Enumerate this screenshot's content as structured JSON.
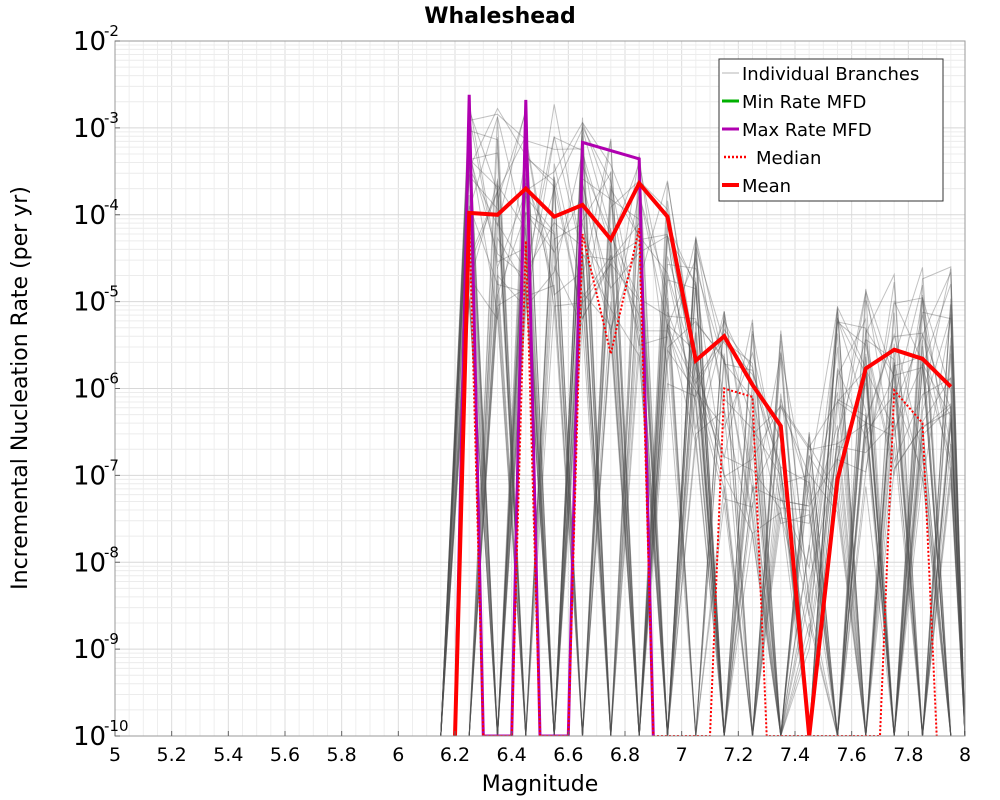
{
  "chart_data": {
    "type": "line",
    "title": "Whaleshead",
    "xlabel": "Magnitude",
    "ylabel": "Incremental Nucleation Rate (per yr)",
    "xlim": [
      5,
      8
    ],
    "ylim": [
      1e-10,
      0.01
    ],
    "yscale": "log",
    "grid": true,
    "legend_position": "top-right",
    "x_ticks": [
      {
        "value": 5,
        "label": "5"
      },
      {
        "value": 5.2,
        "label": "5.2"
      },
      {
        "value": 5.4,
        "label": "5.4"
      },
      {
        "value": 5.6,
        "label": "5.6"
      },
      {
        "value": 5.8,
        "label": "5.8"
      },
      {
        "value": 6,
        "label": "6"
      },
      {
        "value": 6.2,
        "label": "6.2"
      },
      {
        "value": 6.4,
        "label": "6.4"
      },
      {
        "value": 6.6,
        "label": "6.6"
      },
      {
        "value": 6.8,
        "label": "6.8"
      },
      {
        "value": 7,
        "label": "7"
      },
      {
        "value": 7.2,
        "label": "7.2"
      },
      {
        "value": 7.4,
        "label": "7.4"
      },
      {
        "value": 7.6,
        "label": "7.6"
      },
      {
        "value": 7.8,
        "label": "7.8"
      },
      {
        "value": 8,
        "label": "8"
      }
    ],
    "y_ticks": [
      {
        "exponent": -10,
        "base": "10",
        "exp": "-10"
      },
      {
        "exponent": -9,
        "base": "10",
        "exp": "-9"
      },
      {
        "exponent": -8,
        "base": "10",
        "exp": "-8"
      },
      {
        "exponent": -7,
        "base": "10",
        "exp": "-7"
      },
      {
        "exponent": -6,
        "base": "10",
        "exp": "-6"
      },
      {
        "exponent": -5,
        "base": "10",
        "exp": "-5"
      },
      {
        "exponent": -4,
        "base": "10",
        "exp": "-4"
      },
      {
        "exponent": -3,
        "base": "10",
        "exp": "-3"
      },
      {
        "exponent": -2,
        "base": "10",
        "exp": "-2"
      }
    ],
    "legend": [
      {
        "label": "Individual Branches",
        "color": "#b4b4b4",
        "style": "thin"
      },
      {
        "label": "Min Rate MFD",
        "color": "#00b000",
        "style": "solid"
      },
      {
        "label": "Max Rate MFD",
        "color": "#b000b0",
        "style": "solid"
      },
      {
        "label": "Median",
        "color": "#ff0000",
        "style": "dotted"
      },
      {
        "label": "Mean",
        "color": "#ff0000",
        "style": "bold"
      }
    ],
    "individual_branches": {
      "count_shown": 60,
      "color": "#505050",
      "bins": [
        6.15,
        6.25,
        6.35,
        6.45,
        6.55,
        6.65,
        6.75,
        6.85,
        6.95,
        7.05,
        7.15,
        7.25,
        7.35,
        7.45,
        7.55,
        7.65,
        7.75,
        7.85,
        7.95,
        8.0
      ],
      "envelope_log10_low": [
        -10,
        -10,
        -10,
        -10,
        -10,
        -10,
        -10,
        -10,
        -10,
        -10,
        -10,
        -10,
        -10,
        -10,
        -10,
        -10,
        -10,
        -10,
        -10,
        -10
      ],
      "envelope_log10_high": [
        -10,
        -2.6,
        -2.7,
        -2.7,
        -2.7,
        -2.8,
        -3.0,
        -3.2,
        -3.6,
        -4.2,
        -5.0,
        -5.2,
        -5.3,
        -6.5,
        -5.0,
        -4.8,
        -4.6,
        -4.6,
        -4.6,
        -10
      ]
    },
    "series": [
      {
        "name": "Max Rate MFD",
        "color": "#b000b0",
        "x": [
          6.2,
          6.25,
          6.3,
          6.4,
          6.45,
          6.5,
          6.6,
          6.65,
          6.85,
          6.9
        ],
        "y": [
          1e-10,
          0.0024,
          1e-10,
          1e-10,
          0.0021,
          1e-10,
          1e-10,
          0.00068,
          0.00044,
          1e-10
        ]
      },
      {
        "name": "Median",
        "color": "#ff0000",
        "x": [
          6.2,
          6.25,
          6.3,
          6.4,
          6.45,
          6.5,
          6.6,
          6.65,
          6.75,
          6.85,
          6.9,
          7.1,
          7.15,
          7.25,
          7.3,
          7.7,
          7.75,
          7.85,
          7.9
        ],
        "y": [
          1e-10,
          0.0001,
          1e-10,
          1e-10,
          5e-05,
          1e-10,
          1e-10,
          6e-05,
          2.5e-06,
          7e-05,
          1e-10,
          1e-10,
          1e-06,
          8e-07,
          1e-10,
          1e-10,
          9.5e-07,
          4e-07,
          1e-10
        ]
      },
      {
        "name": "Mean",
        "color": "#ff0000",
        "x": [
          6.2,
          6.25,
          6.35,
          6.45,
          6.55,
          6.65,
          6.75,
          6.85,
          6.95,
          7.05,
          7.15,
          7.25,
          7.35,
          7.45,
          7.55,
          7.65,
          7.75,
          7.85,
          7.95
        ],
        "y": [
          1e-10,
          0.000105,
          0.0001,
          0.0002,
          9.5e-05,
          0.00013,
          5.2e-05,
          0.00023,
          9.5e-05,
          2.1e-06,
          4e-06,
          1.1e-06,
          3.7e-07,
          1e-10,
          9e-08,
          1.7e-06,
          2.8e-06,
          2.2e-06,
          1.05e-06
        ]
      }
    ]
  }
}
